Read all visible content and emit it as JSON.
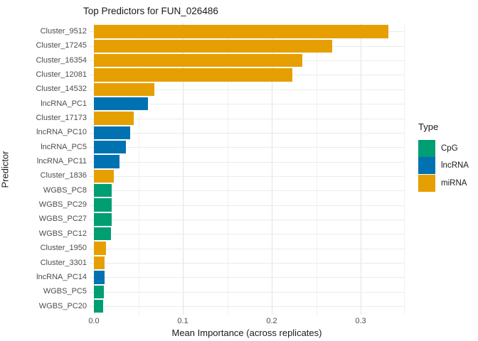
{
  "title": "Top Predictors for FUN_026486",
  "axes": {
    "x_label": "Mean Importance (across replicates)",
    "y_label": "Predictor",
    "x_tick_labels": [
      "0.0",
      "0.1",
      "0.2",
      "0.3"
    ]
  },
  "legend": {
    "title": "Type",
    "entries": [
      {
        "label": "CpG",
        "color": "#009E73"
      },
      {
        "label": "lncRNA",
        "color": "#0072B2"
      },
      {
        "label": "miRNA",
        "color": "#E69F00"
      }
    ]
  },
  "colors": {
    "CpG": "#009E73",
    "lncRNA": "#0072B2",
    "miRNA": "#E69F00",
    "grid_major": "#E2E2E2",
    "grid_minor": "#F0F0F0",
    "axis_text": "#4D4D4D",
    "title_text": "#1A1A1A"
  },
  "chart_data": {
    "type": "bar",
    "orientation": "horizontal",
    "title": "Top Predictors for FUN_026486",
    "xlabel": "Mean Importance (across replicates)",
    "ylabel": "Predictor",
    "xlim": [
      0,
      0.354
    ],
    "x_tick_values": [
      0.0,
      0.1,
      0.2,
      0.3
    ],
    "minor_tick_values": [
      0.05,
      0.15,
      0.25,
      0.35
    ],
    "grid": true,
    "legend_title": "Type",
    "legend_position": "right",
    "categories": [
      "Cluster_9512",
      "Cluster_17245",
      "Cluster_16354",
      "Cluster_12081",
      "Cluster_14532",
      "lncRNA_PC1",
      "Cluster_17173",
      "lncRNA_PC10",
      "lncRNA_PC5",
      "lncRNA_PC11",
      "Cluster_1836",
      "WGBS_PC8",
      "WGBS_PC29",
      "WGBS_PC27",
      "WGBS_PC12",
      "Cluster_1950",
      "Cluster_3301",
      "lncRNA_PC14",
      "WGBS_PC5",
      "WGBS_PC20"
    ],
    "values": [
      0.331,
      0.268,
      0.234,
      0.223,
      0.068,
      0.061,
      0.045,
      0.041,
      0.036,
      0.029,
      0.022,
      0.0203,
      0.0199,
      0.0197,
      0.0193,
      0.0139,
      0.0118,
      0.0117,
      0.011,
      0.0105
    ],
    "types": [
      "miRNA",
      "miRNA",
      "miRNA",
      "miRNA",
      "miRNA",
      "lncRNA",
      "miRNA",
      "lncRNA",
      "lncRNA",
      "lncRNA",
      "miRNA",
      "CpG",
      "CpG",
      "CpG",
      "CpG",
      "miRNA",
      "miRNA",
      "lncRNA",
      "CpG",
      "CpG"
    ]
  }
}
